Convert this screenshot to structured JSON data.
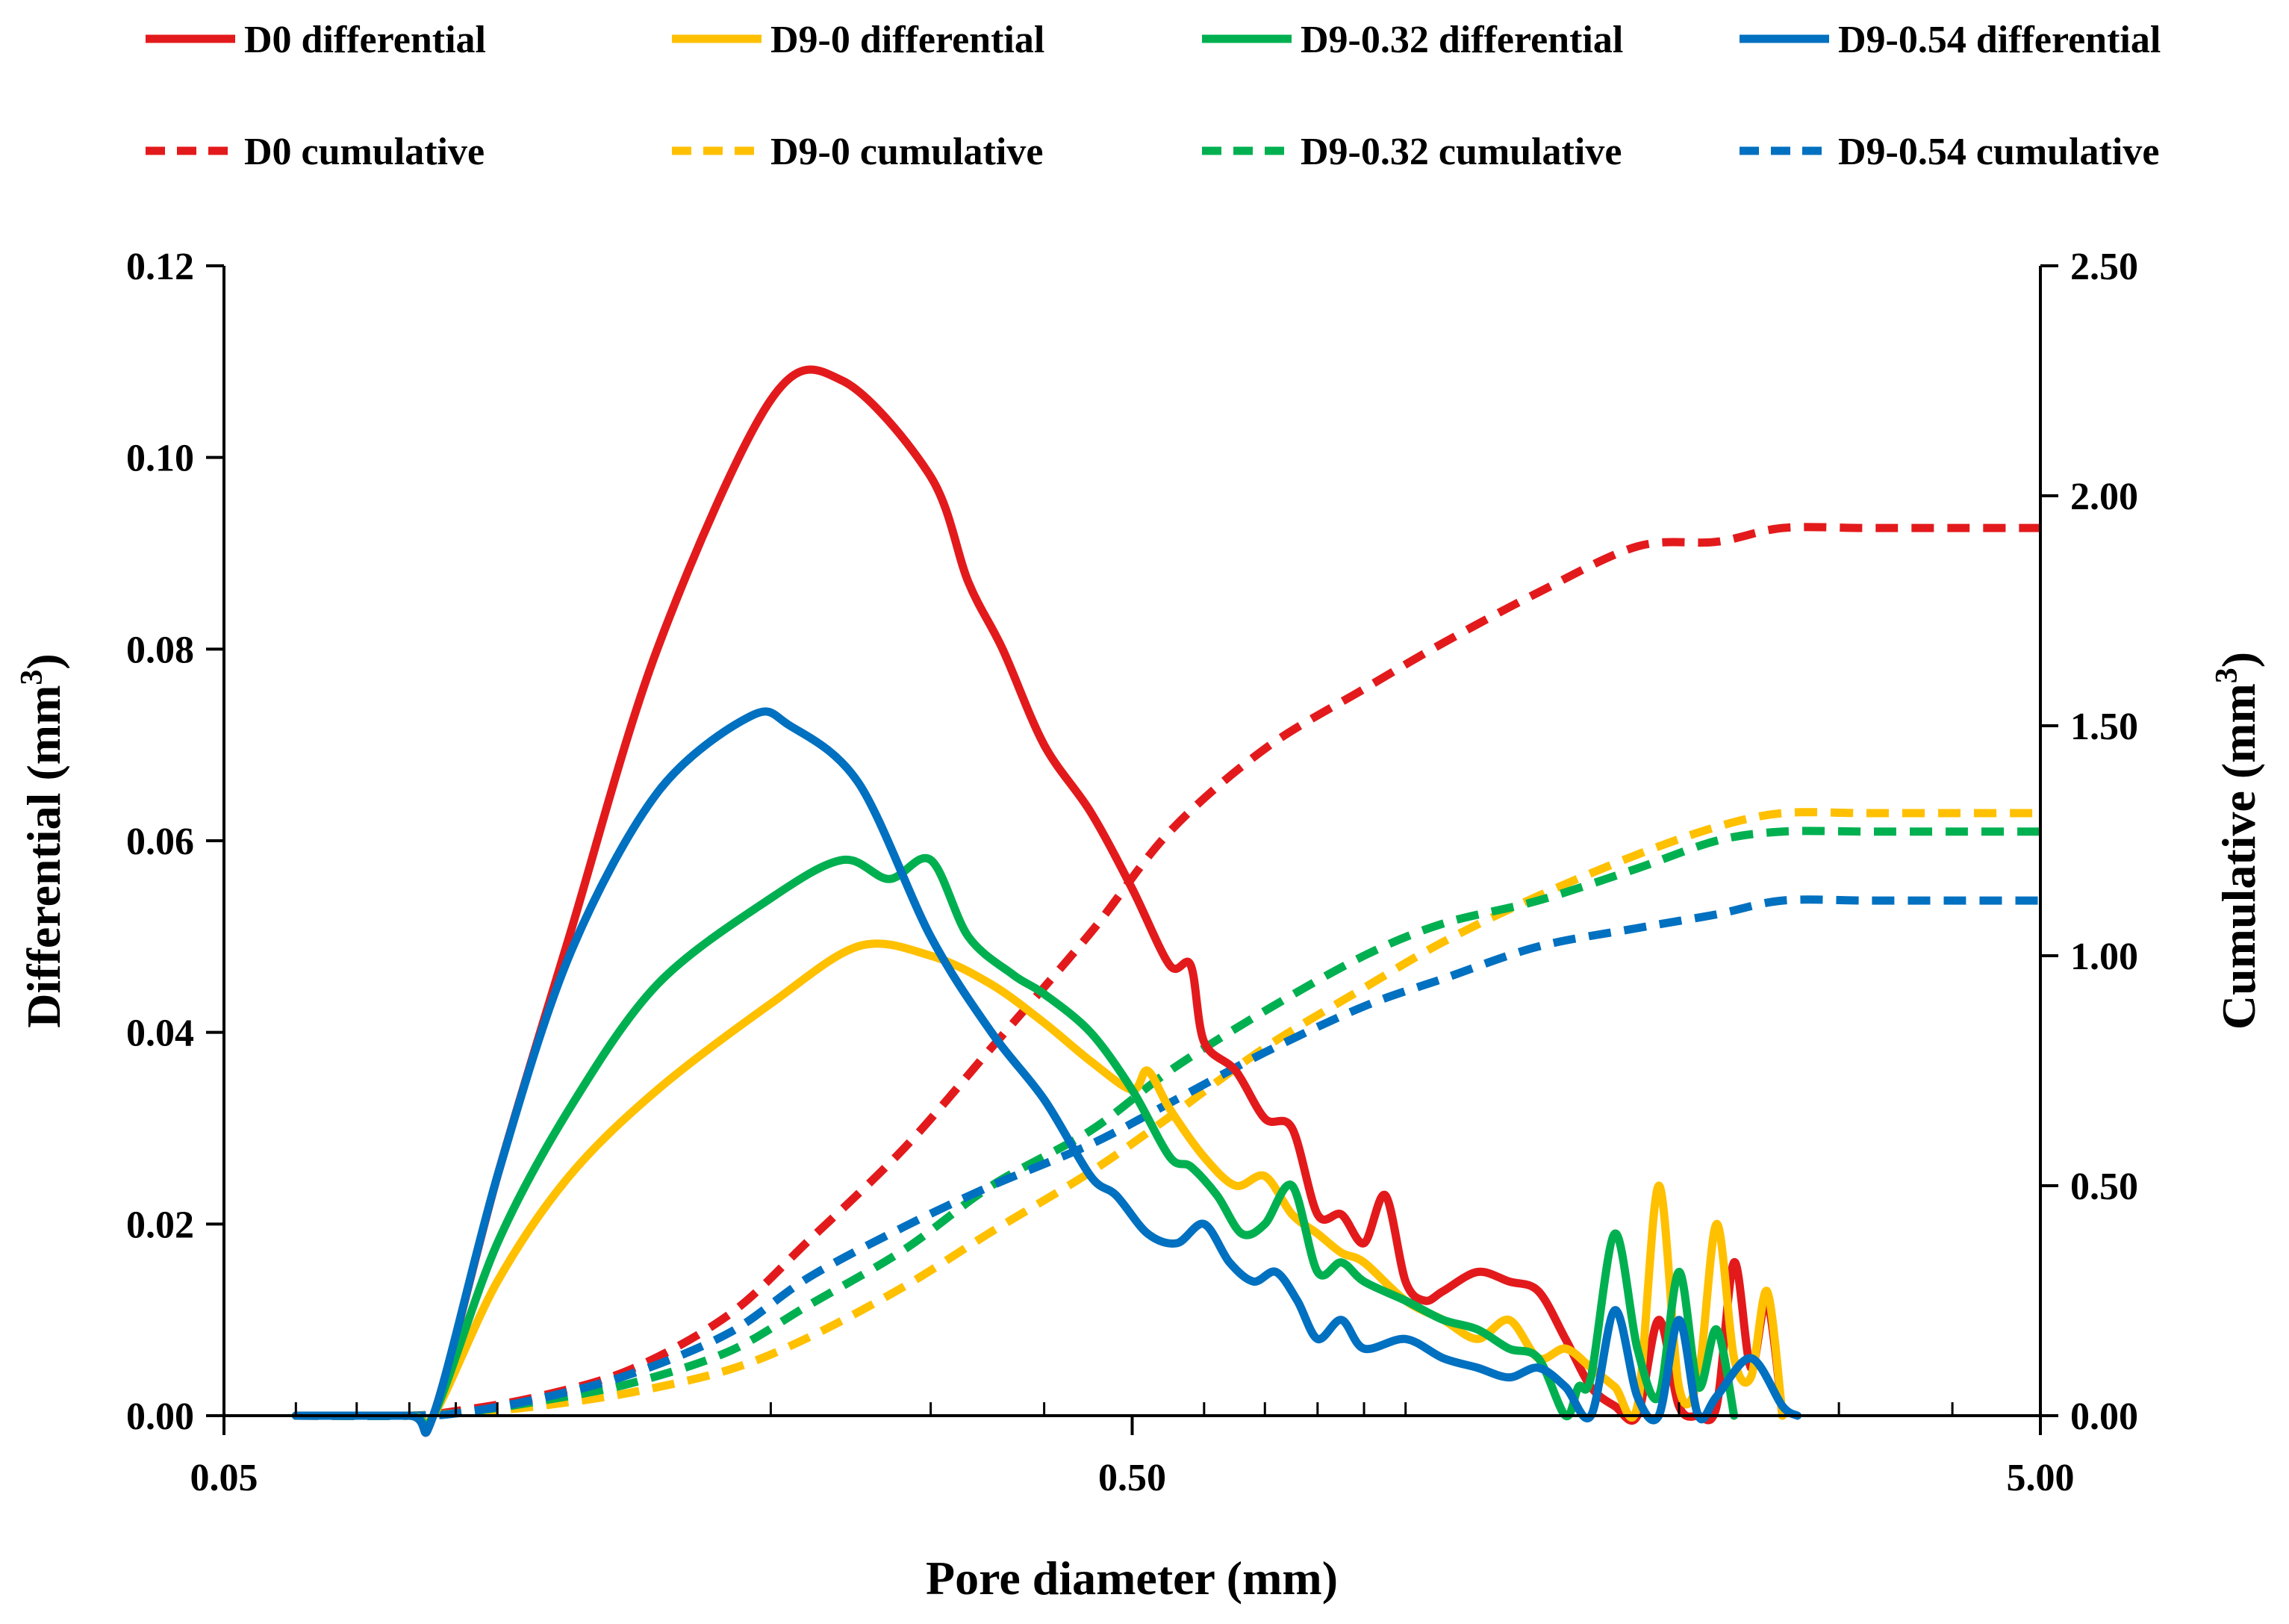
{
  "chart_data": {
    "type": "line",
    "xlabel": "Pore diameter (mm)",
    "ylabel_left": "Differential (mm",
    "ylabel_left_sup": "3",
    "ylabel_left_close": ")",
    "ylabel_right": "Cumulative (mm",
    "ylabel_right_sup": "3",
    "ylabel_right_close": ")",
    "x_scale": "log",
    "xlim": [
      0.05,
      5.0
    ],
    "ylim_left": [
      0,
      0.12
    ],
    "ylim_right": [
      0,
      2.5
    ],
    "x_ticks": [
      {
        "value": 0.05,
        "label": "0.05"
      },
      {
        "value": 0.5,
        "label": "0.50"
      },
      {
        "value": 5.0,
        "label": "5.00"
      }
    ],
    "y_left_ticks": [
      "0.00",
      "0.02",
      "0.04",
      "0.06",
      "0.08",
      "0.10",
      "0.12"
    ],
    "y_left_tick_values": [
      0,
      0.02,
      0.04,
      0.06,
      0.08,
      0.1,
      0.12
    ],
    "y_right_ticks": [
      "0.00",
      "0.50",
      "1.00",
      "1.50",
      "2.00",
      "2.50"
    ],
    "y_right_tick_values": [
      0,
      0.5,
      1.0,
      1.5,
      2.0,
      2.5
    ],
    "legend_position": "top",
    "series": [
      {
        "name": "D0 differential",
        "axis": "left",
        "style": "solid",
        "color": "#e31a1c",
        "x": [
          0.06,
          0.08,
          0.085,
          0.1,
          0.12,
          0.15,
          0.2,
          0.24,
          0.3,
          0.33,
          0.36,
          0.4,
          0.45,
          0.5,
          0.55,
          0.58,
          0.6,
          0.65,
          0.7,
          0.75,
          0.8,
          0.85,
          0.9,
          0.95,
          1.0,
          1.05,
          1.1,
          1.2,
          1.3,
          1.4,
          1.5,
          1.6,
          1.7,
          1.8,
          1.9,
          2.0,
          2.1,
          2.2,
          2.3,
          2.4,
          2.5,
          2.6
        ],
        "y": [
          0,
          0,
          0,
          0.025,
          0.05,
          0.08,
          0.106,
          0.108,
          0.098,
          0.087,
          0.08,
          0.07,
          0.063,
          0.055,
          0.047,
          0.047,
          0.039,
          0.036,
          0.031,
          0.03,
          0.021,
          0.021,
          0.018,
          0.023,
          0.014,
          0.012,
          0.013,
          0.015,
          0.014,
          0.013,
          0.008,
          0.003,
          0.001,
          0,
          0.01,
          0.001,
          0.0,
          0.001,
          0.016,
          0.005,
          0.012,
          0.0
        ]
      },
      {
        "name": "D9-0 differential",
        "axis": "left",
        "style": "solid",
        "color": "#ffc000",
        "x": [
          0.06,
          0.08,
          0.085,
          0.1,
          0.12,
          0.15,
          0.2,
          0.25,
          0.3,
          0.35,
          0.4,
          0.45,
          0.5,
          0.52,
          0.55,
          0.6,
          0.65,
          0.7,
          0.75,
          0.8,
          0.85,
          0.9,
          1.0,
          1.1,
          1.2,
          1.3,
          1.4,
          1.5,
          1.6,
          1.7,
          1.8,
          1.9,
          2.0,
          2.1,
          2.2,
          2.3,
          2.4,
          2.5,
          2.6
        ],
        "y": [
          0,
          0,
          0,
          0.014,
          0.025,
          0.034,
          0.043,
          0.049,
          0.048,
          0.045,
          0.041,
          0.037,
          0.034,
          0.036,
          0.032,
          0.027,
          0.024,
          0.025,
          0.021,
          0.019,
          0.017,
          0.016,
          0.012,
          0.01,
          0.008,
          0.01,
          0.006,
          0.007,
          0.005,
          0.003,
          0.001,
          0.024,
          0.003,
          0.004,
          0.02,
          0.006,
          0.004,
          0.013,
          0.0
        ]
      },
      {
        "name": "D9-0.32 differential",
        "axis": "left",
        "style": "solid",
        "color": "#00b050",
        "x": [
          0.06,
          0.08,
          0.085,
          0.1,
          0.12,
          0.15,
          0.2,
          0.24,
          0.27,
          0.3,
          0.33,
          0.37,
          0.4,
          0.45,
          0.5,
          0.55,
          0.58,
          0.62,
          0.66,
          0.7,
          0.75,
          0.8,
          0.85,
          0.9,
          1.0,
          1.1,
          1.2,
          1.3,
          1.4,
          1.5,
          1.55,
          1.6,
          1.7,
          1.8,
          1.9,
          2.0,
          2.1,
          2.2,
          2.3
        ],
        "y": [
          0,
          0,
          0,
          0.018,
          0.032,
          0.045,
          0.054,
          0.058,
          0.056,
          0.058,
          0.05,
          0.046,
          0.044,
          0.04,
          0.034,
          0.027,
          0.026,
          0.023,
          0.019,
          0.02,
          0.024,
          0.015,
          0.016,
          0.014,
          0.012,
          0.01,
          0.009,
          0.007,
          0.006,
          0.0,
          0.003,
          0.004,
          0.019,
          0.007,
          0.002,
          0.015,
          0.003,
          0.009,
          0.0
        ]
      },
      {
        "name": "D9-0.54 differential",
        "axis": "left",
        "style": "solid",
        "color": "#0070c0",
        "x": [
          0.06,
          0.08,
          0.085,
          0.1,
          0.12,
          0.15,
          0.19,
          0.21,
          0.25,
          0.3,
          0.35,
          0.4,
          0.45,
          0.48,
          0.52,
          0.56,
          0.6,
          0.64,
          0.68,
          0.72,
          0.76,
          0.8,
          0.85,
          0.9,
          1.0,
          1.1,
          1.2,
          1.3,
          1.4,
          1.5,
          1.6,
          1.7,
          1.8,
          1.9,
          2.0,
          2.1,
          2.2,
          2.4,
          2.6,
          2.7
        ],
        "y": [
          0,
          0,
          0,
          0.025,
          0.048,
          0.065,
          0.073,
          0.072,
          0.066,
          0.05,
          0.04,
          0.033,
          0.025,
          0.023,
          0.019,
          0.018,
          0.02,
          0.016,
          0.014,
          0.015,
          0.012,
          0.008,
          0.01,
          0.007,
          0.008,
          0.006,
          0.005,
          0.004,
          0.005,
          0.003,
          0.0,
          0.011,
          0.002,
          0.0,
          0.01,
          0.0,
          0.002,
          0.006,
          0.001,
          0.0
        ]
      },
      {
        "name": "D0 cumulative",
        "axis": "right",
        "style": "dashed",
        "color": "#e31a1c",
        "x": [
          0.06,
          0.08,
          0.09,
          0.11,
          0.14,
          0.18,
          0.22,
          0.28,
          0.35,
          0.45,
          0.55,
          0.7,
          0.9,
          1.1,
          1.4,
          1.8,
          2.2,
          2.6,
          3.2,
          4.0,
          5.0
        ],
        "y": [
          0,
          0,
          0.01,
          0.04,
          0.1,
          0.22,
          0.38,
          0.58,
          0.8,
          1.05,
          1.27,
          1.45,
          1.58,
          1.68,
          1.79,
          1.89,
          1.9,
          1.93,
          1.93,
          1.93,
          1.93
        ]
      },
      {
        "name": "D9-0 cumulative",
        "axis": "right",
        "style": "dashed",
        "color": "#ffc000",
        "x": [
          0.06,
          0.08,
          0.09,
          0.11,
          0.14,
          0.18,
          0.22,
          0.28,
          0.35,
          0.45,
          0.55,
          0.7,
          0.9,
          1.1,
          1.4,
          1.8,
          2.2,
          2.6,
          3.2,
          4.0,
          5.0
        ],
        "y": [
          0,
          0,
          0.005,
          0.02,
          0.05,
          0.1,
          0.17,
          0.28,
          0.4,
          0.53,
          0.65,
          0.8,
          0.93,
          1.03,
          1.13,
          1.22,
          1.28,
          1.31,
          1.31,
          1.31,
          1.31
        ]
      },
      {
        "name": "D9-0.32 cumulative",
        "axis": "right",
        "style": "dashed",
        "color": "#00b050",
        "x": [
          0.06,
          0.08,
          0.09,
          0.11,
          0.14,
          0.18,
          0.22,
          0.28,
          0.35,
          0.45,
          0.55,
          0.7,
          0.9,
          1.1,
          1.4,
          1.8,
          2.2,
          2.6,
          3.2,
          4.0,
          5.0
        ],
        "y": [
          0,
          0,
          0.005,
          0.03,
          0.07,
          0.14,
          0.24,
          0.36,
          0.5,
          0.62,
          0.75,
          0.88,
          1.0,
          1.07,
          1.12,
          1.19,
          1.25,
          1.27,
          1.27,
          1.27,
          1.27
        ]
      },
      {
        "name": "D9-0.54 cumulative",
        "axis": "right",
        "style": "dashed",
        "color": "#0070c0",
        "x": [
          0.06,
          0.08,
          0.09,
          0.11,
          0.14,
          0.18,
          0.22,
          0.28,
          0.35,
          0.45,
          0.55,
          0.7,
          0.9,
          1.1,
          1.4,
          1.8,
          2.2,
          2.6,
          3.2,
          4.0,
          5.0
        ],
        "y": [
          0,
          0,
          0.005,
          0.035,
          0.09,
          0.18,
          0.3,
          0.41,
          0.5,
          0.59,
          0.68,
          0.79,
          0.89,
          0.95,
          1.02,
          1.06,
          1.09,
          1.12,
          1.12,
          1.12,
          1.12
        ]
      }
    ]
  }
}
